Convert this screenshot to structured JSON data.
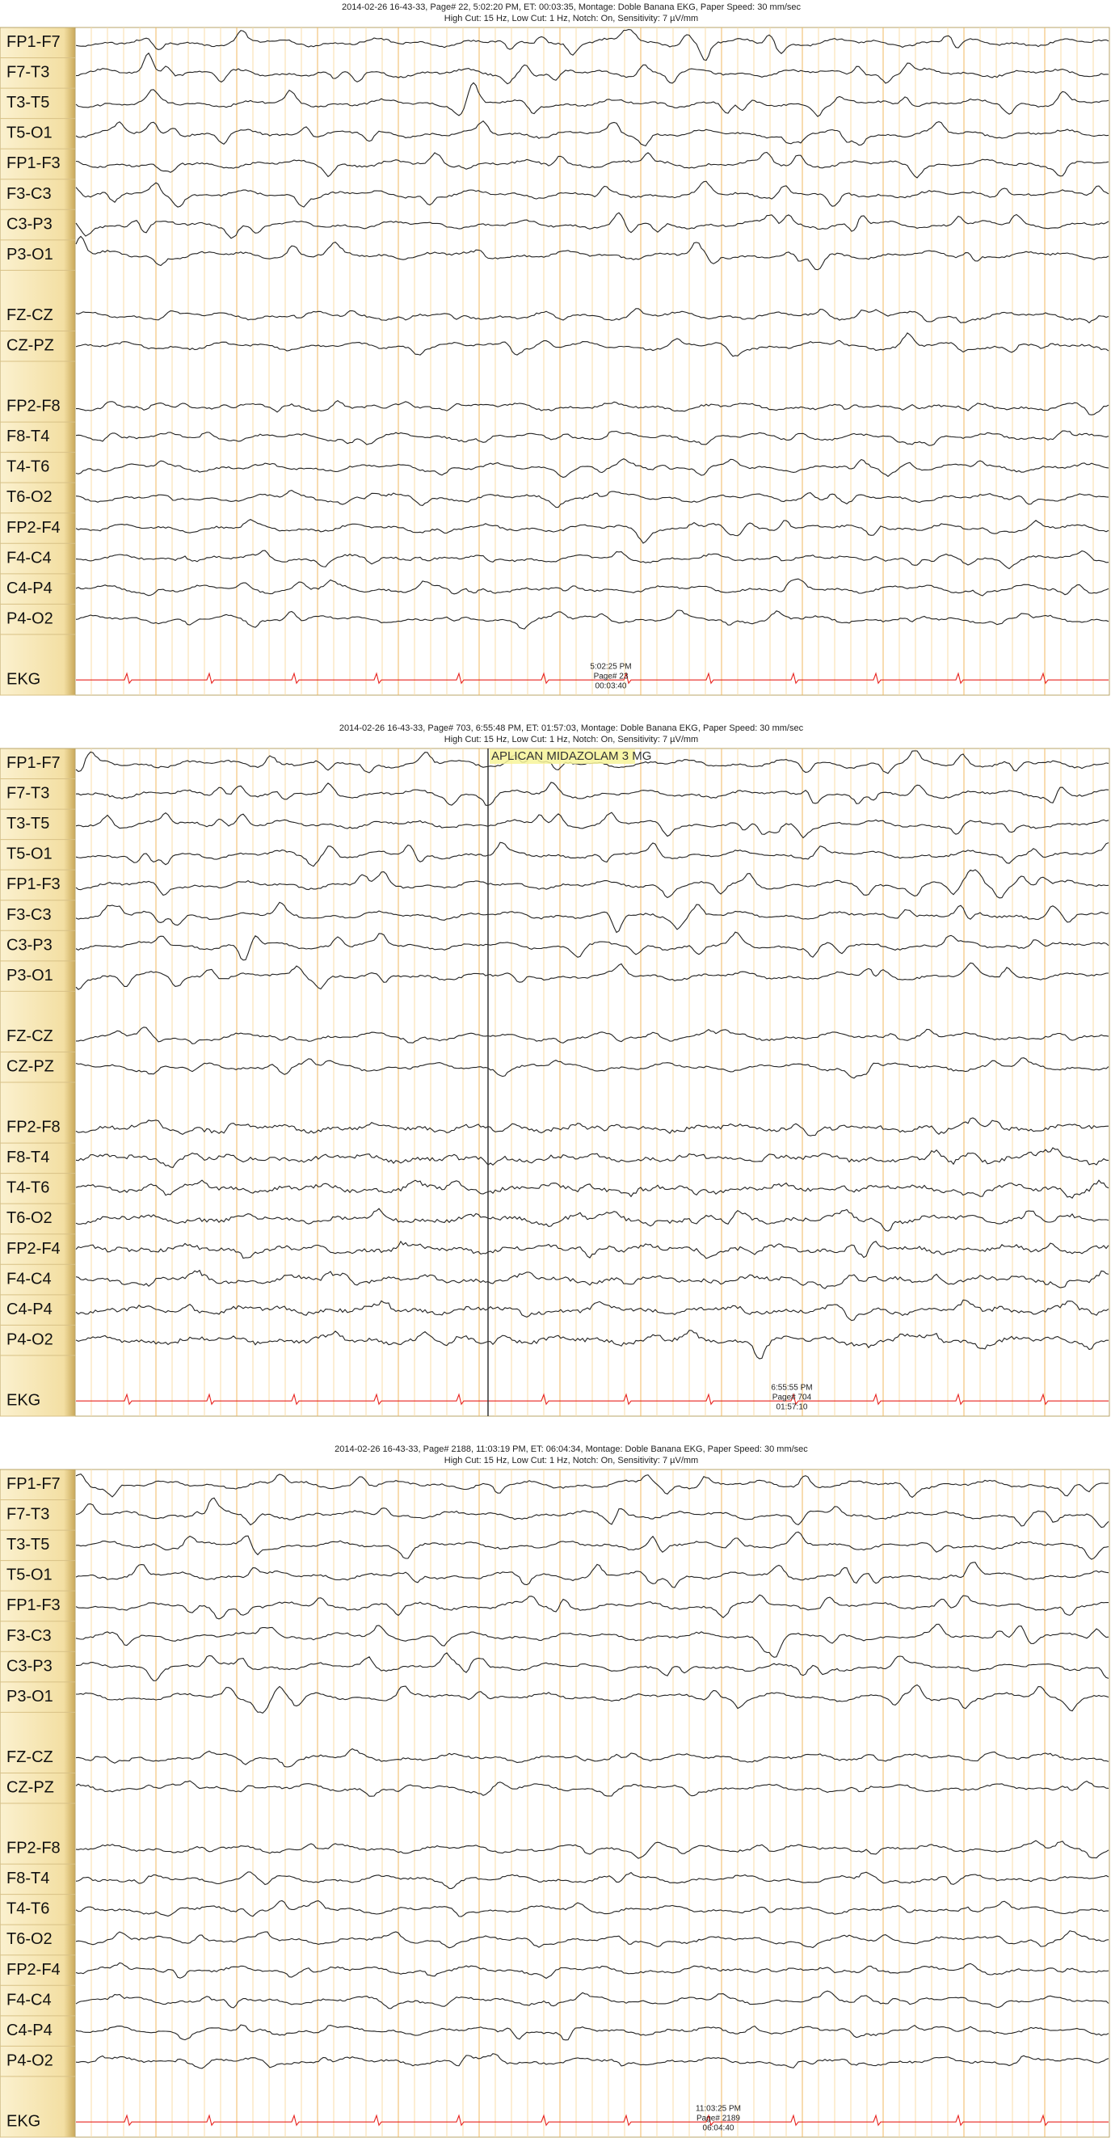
{
  "panels": [
    {
      "header": [
        "2014-02-26 16-43-33, Page# 22, 5:02:20 PM, ET: 00:03:35, Montage: Doble Banana EKG, Paper Speed: 30 mm/sec",
        "High Cut: 15 Hz, Low Cut: 1 Hz, Notch: On, Sensitivity: 7 µV/mm"
      ],
      "channels": [
        "FP1-F7",
        "F7-T3",
        "T3-T5",
        "T5-O1",
        "FP1-F3",
        "F3-C3",
        "C3-P3",
        "P3-O1",
        "FZ-CZ",
        "CZ-PZ",
        "FP2-F8",
        "F8-T4",
        "T4-T6",
        "T6-O2",
        "FP2-F4",
        "F4-C4",
        "C4-P4",
        "P4-O2",
        "EKG"
      ],
      "footer": [
        "5:02:25 PM",
        "Page# 23",
        "00:03:40"
      ]
    },
    {
      "header": [
        "2014-02-26 16-43-33, Page# 703, 6:55:48 PM, ET: 01:57:03, Montage: Doble Banana EKG, Paper Speed: 30 mm/sec",
        "High Cut: 15 Hz, Low Cut: 1 Hz, Notch: On, Sensitivity: 7 µV/mm"
      ],
      "channels": [
        "FP1-F7",
        "F7-T3",
        "T3-T5",
        "T5-O1",
        "FP1-F3",
        "F3-C3",
        "C3-P3",
        "P3-O1",
        "FZ-CZ",
        "CZ-PZ",
        "FP2-F8",
        "F8-T4",
        "T4-T6",
        "T6-O2",
        "FP2-F4",
        "F4-C4",
        "C4-P4",
        "P4-O2",
        "EKG"
      ],
      "annotation": "APLICAN MIDAZOLAM 3 MG",
      "footer": [
        "6:55:55 PM",
        "Page# 704",
        "01:57:10"
      ]
    },
    {
      "header": [
        "2014-02-26 16-43-33, Page# 2188, 11:03:19 PM, ET: 06:04:34, Montage: Doble Banana EKG, Paper Speed: 30 mm/sec",
        "High Cut: 15 Hz, Low Cut: 1 Hz, Notch: On, Sensitivity: 7 µV/mm"
      ],
      "channels": [
        "FP1-F7",
        "F7-T3",
        "T3-T5",
        "T5-O1",
        "FP1-F3",
        "F3-C3",
        "C3-P3",
        "P3-O1",
        "FZ-CZ",
        "CZ-PZ",
        "FP2-F8",
        "F8-T4",
        "T4-T6",
        "T6-O2",
        "FP2-F4",
        "F4-C4",
        "C4-P4",
        "P4-O2",
        "EKG"
      ],
      "footer": [
        "11:03:25 PM",
        "Page# 2189",
        "06:04:40"
      ]
    }
  ]
}
